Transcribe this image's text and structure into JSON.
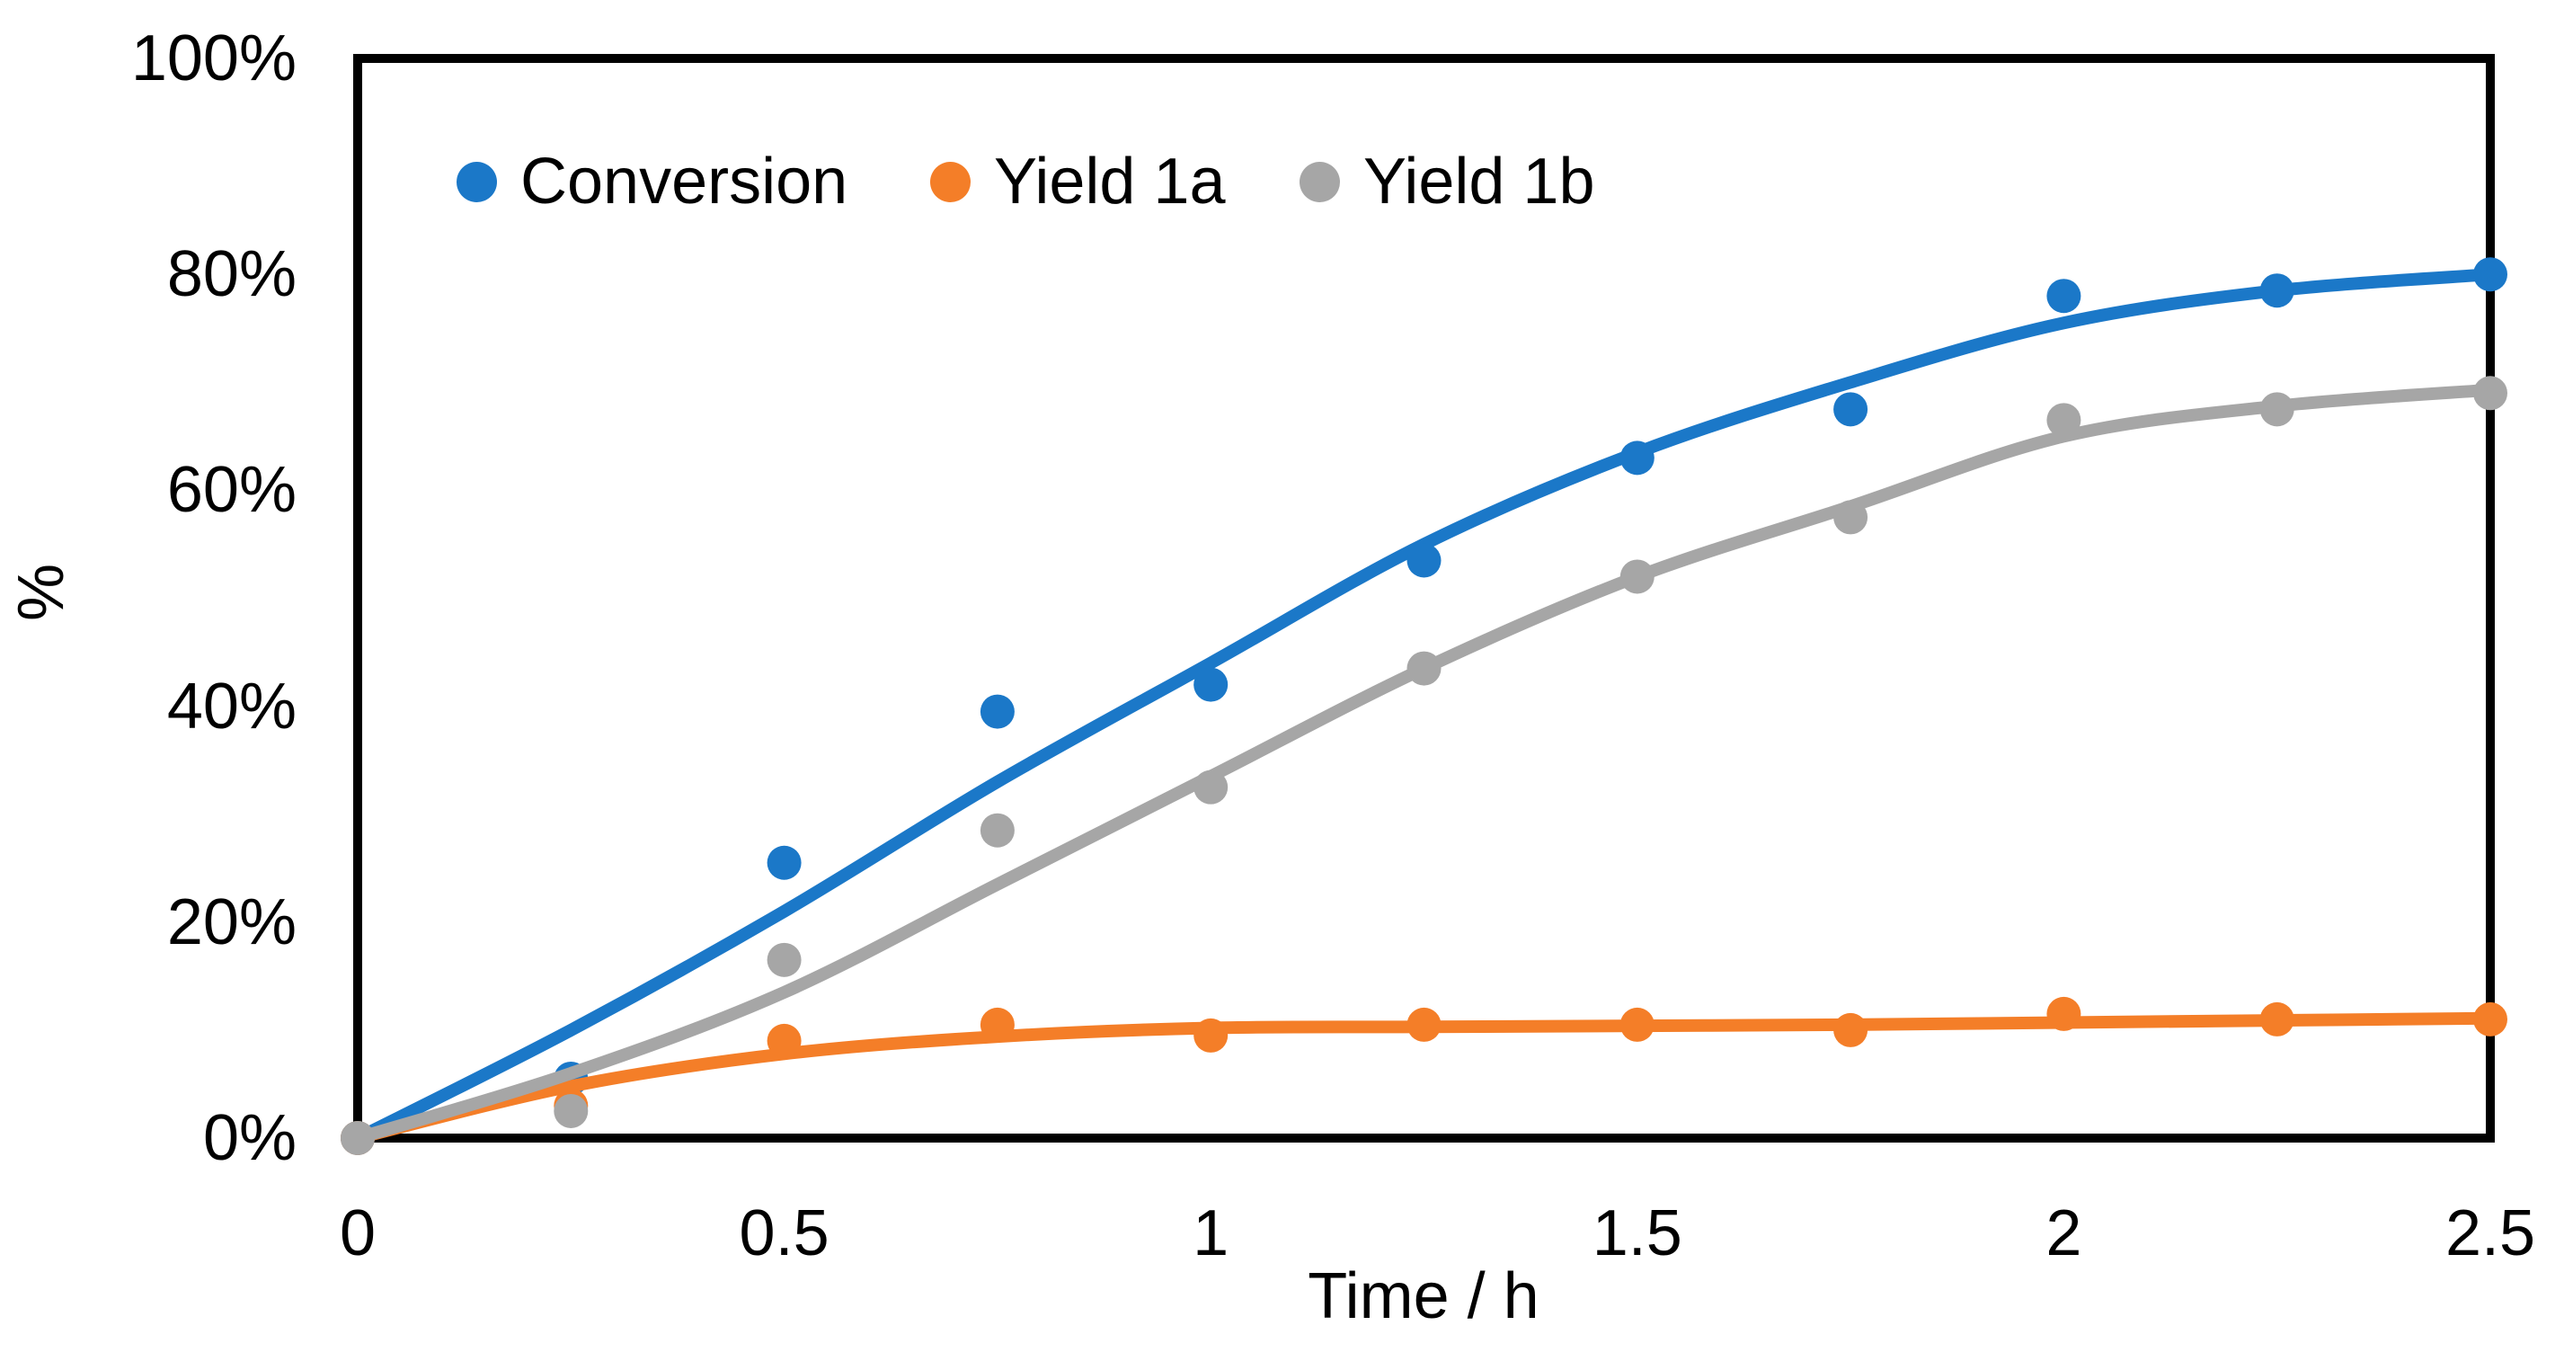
{
  "chart_data": {
    "type": "scatter",
    "title": "",
    "xlabel": "Time / h",
    "ylabel": "%",
    "xlim": [
      0,
      2.5
    ],
    "ylim": [
      0,
      100
    ],
    "grid": false,
    "legend_position": "inside-top-left",
    "frame_color": "#000000",
    "x_ticks": [
      {
        "value": 0,
        "label": "0"
      },
      {
        "value": 0.5,
        "label": "0.5"
      },
      {
        "value": 1,
        "label": "1"
      },
      {
        "value": 1.5,
        "label": "1.5"
      },
      {
        "value": 2,
        "label": "2"
      },
      {
        "value": 2.5,
        "label": "2.5"
      }
    ],
    "y_ticks": [
      {
        "value": 0,
        "label": "0%"
      },
      {
        "value": 20,
        "label": "20%"
      },
      {
        "value": 40,
        "label": "40%"
      },
      {
        "value": 60,
        "label": "60%"
      },
      {
        "value": 80,
        "label": "80%"
      },
      {
        "value": 100,
        "label": "100%"
      }
    ],
    "x": [
      0,
      0.25,
      0.5,
      0.75,
      1,
      1.25,
      1.5,
      1.75,
      2,
      2.25,
      2.5
    ],
    "series": [
      {
        "name": "Conversion",
        "color": "#1B78C8",
        "points": [
          0,
          5.5,
          25.5,
          39.5,
          42,
          53.5,
          63,
          67.5,
          78,
          78.5,
          80
        ],
        "trend": [
          0,
          10,
          21,
          33,
          44,
          55,
          63.5,
          70,
          75.5,
          78.5,
          80
        ]
      },
      {
        "name": "Yield 1a",
        "color": "#F47E28",
        "points": [
          0,
          3,
          9,
          10.5,
          9.5,
          10.5,
          10.5,
          10,
          11.5,
          11,
          11
        ],
        "trend": [
          0,
          4.8,
          7.8,
          9.4,
          10.2,
          10.3,
          10.4,
          10.5,
          10.7,
          10.9,
          11.1
        ]
      },
      {
        "name": "Yield 1b",
        "color": "#A6A6A6",
        "points": [
          0,
          2.5,
          16.5,
          28.5,
          32.5,
          43.5,
          52,
          57.5,
          66.5,
          67.5,
          69
        ],
        "trend": [
          0,
          6,
          13.5,
          23.5,
          33.5,
          43.5,
          52,
          58.5,
          65,
          67.8,
          69.3
        ]
      }
    ]
  }
}
